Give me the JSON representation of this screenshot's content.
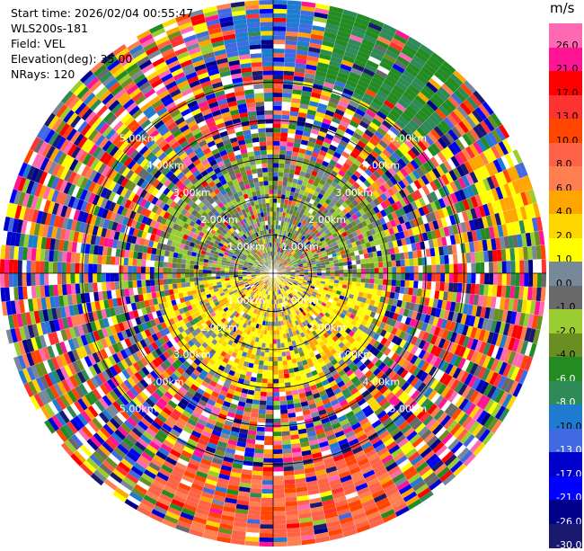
{
  "header": {
    "start_time": "Start time: 2026/02/04 00:55:47",
    "instrument": "WLS200s-181",
    "field": "Field: VEL",
    "elevation": "Elevation(deg): 35.00",
    "nrays": "NRays: 120"
  },
  "chart_data": {
    "type": "heatmap",
    "subtype": "polar-ppi",
    "field": "VEL",
    "units": "m/s",
    "n_rays": 120,
    "range_rings_km": [
      1.0,
      2.0,
      3.0,
      4.0,
      5.0
    ],
    "ring_labels": [
      "1.00km",
      "2.00km",
      "3.00km",
      "4.00km",
      "5.00km"
    ],
    "max_range_km": 7.15,
    "colorbar": {
      "title": "m/s",
      "ticks": [
        "26.0",
        "21.0",
        "17.0",
        "13.0",
        "10.0",
        "8.0",
        "6.0",
        "4.0",
        "2.0",
        "1.0",
        "0.0",
        "-1.0",
        "-2.0",
        "-4.0",
        "-6.0",
        "-8.0",
        "-10.0",
        "-13.0",
        "-17.0",
        "-21.0",
        "-26.0",
        "-30.0"
      ],
      "colors": [
        "#ff69b4",
        "#ff1493",
        "#ff0000",
        "#ff3232",
        "#ff4500",
        "#ff6347",
        "#ff7f50",
        "#ffa500",
        "#ffd700",
        "#ffff00",
        "#778899",
        "#696969",
        "#9acd32",
        "#6b8e23",
        "#228b22",
        "#2e8b57",
        "#1e7bd0",
        "#4169e1",
        "#0000cd",
        "#0000ff",
        "#00008b",
        "#191970"
      ]
    },
    "patterns": {
      "near_field_sector": "toward viewer (bottom), 0 to 6 m/s",
      "top_right_sector": "-6 to -4 m/s",
      "bottom_sector": "8 to 13 m/s",
      "outer_east": "2 to 6 m/s"
    }
  }
}
